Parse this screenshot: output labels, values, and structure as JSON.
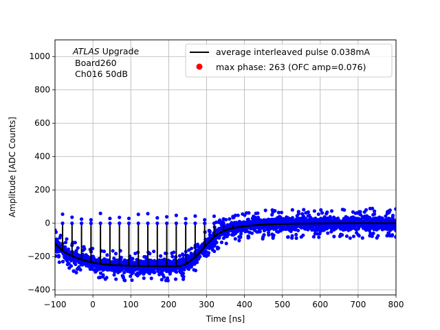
{
  "chart_data": {
    "type": "scatter",
    "xlabel": "Time [ns]",
    "ylabel": "Amplitude [ADC Counts]",
    "xlim": [
      -100,
      800
    ],
    "ylim": [
      -430,
      1100
    ],
    "x_ticks": [
      -100,
      0,
      100,
      200,
      300,
      400,
      500,
      600,
      700,
      800
    ],
    "y_ticks": [
      -400,
      -200,
      0,
      200,
      400,
      600,
      800,
      1000
    ],
    "x_tick_labels": [
      "−100",
      "0",
      "100",
      "200",
      "300",
      "400",
      "500",
      "600",
      "700",
      "800"
    ],
    "y_tick_labels": [
      "−400",
      "−200",
      "0",
      "200",
      "400",
      "600",
      "800",
      "1000"
    ],
    "grid": true,
    "legend_position": "upper-right",
    "annotation": {
      "experiment": "ATLAS",
      "upgrade": "Upgrade",
      "board": "Board260",
      "channel": "Ch016 50dB"
    },
    "series": [
      {
        "name": "average interleaved pulse 0.038mA",
        "kind": "line",
        "color": "#000000",
        "x": [
          -100,
          -90,
          -80,
          -70,
          -60,
          -50,
          -40,
          -30,
          -20,
          -10,
          0,
          20,
          40,
          60,
          80,
          100,
          120,
          140,
          160,
          180,
          200,
          220,
          230,
          240,
          250,
          260,
          270,
          280,
          290,
          300,
          310,
          320,
          330,
          340,
          350,
          360,
          380,
          400,
          430,
          460,
          500,
          550,
          600,
          650,
          700,
          750,
          800
        ],
        "y": [
          -120,
          -145,
          -165,
          -180,
          -192,
          -202,
          -210,
          -218,
          -225,
          -231,
          -237,
          -244,
          -249,
          -252,
          -254,
          -255,
          -256,
          -257,
          -257,
          -258,
          -258,
          -258,
          -256,
          -250,
          -238,
          -222,
          -203,
          -180,
          -155,
          -128,
          -103,
          -82,
          -65,
          -52,
          -42,
          -35,
          -25,
          -18,
          -11,
          -7,
          -4,
          -2,
          -1,
          0,
          0,
          0,
          0
        ]
      },
      {
        "name": "blue samples",
        "kind": "scatter",
        "color": "#0000ff",
        "noise_band": 60,
        "max_outlier": 95
      },
      {
        "name": "max phase: 263 (OFC amp=0.076)",
        "kind": "marker",
        "color": "#ff0000"
      }
    ],
    "sampling_spikes": {
      "start": -80,
      "step": 25,
      "end": 400,
      "top": 0,
      "color": "#000000"
    }
  }
}
